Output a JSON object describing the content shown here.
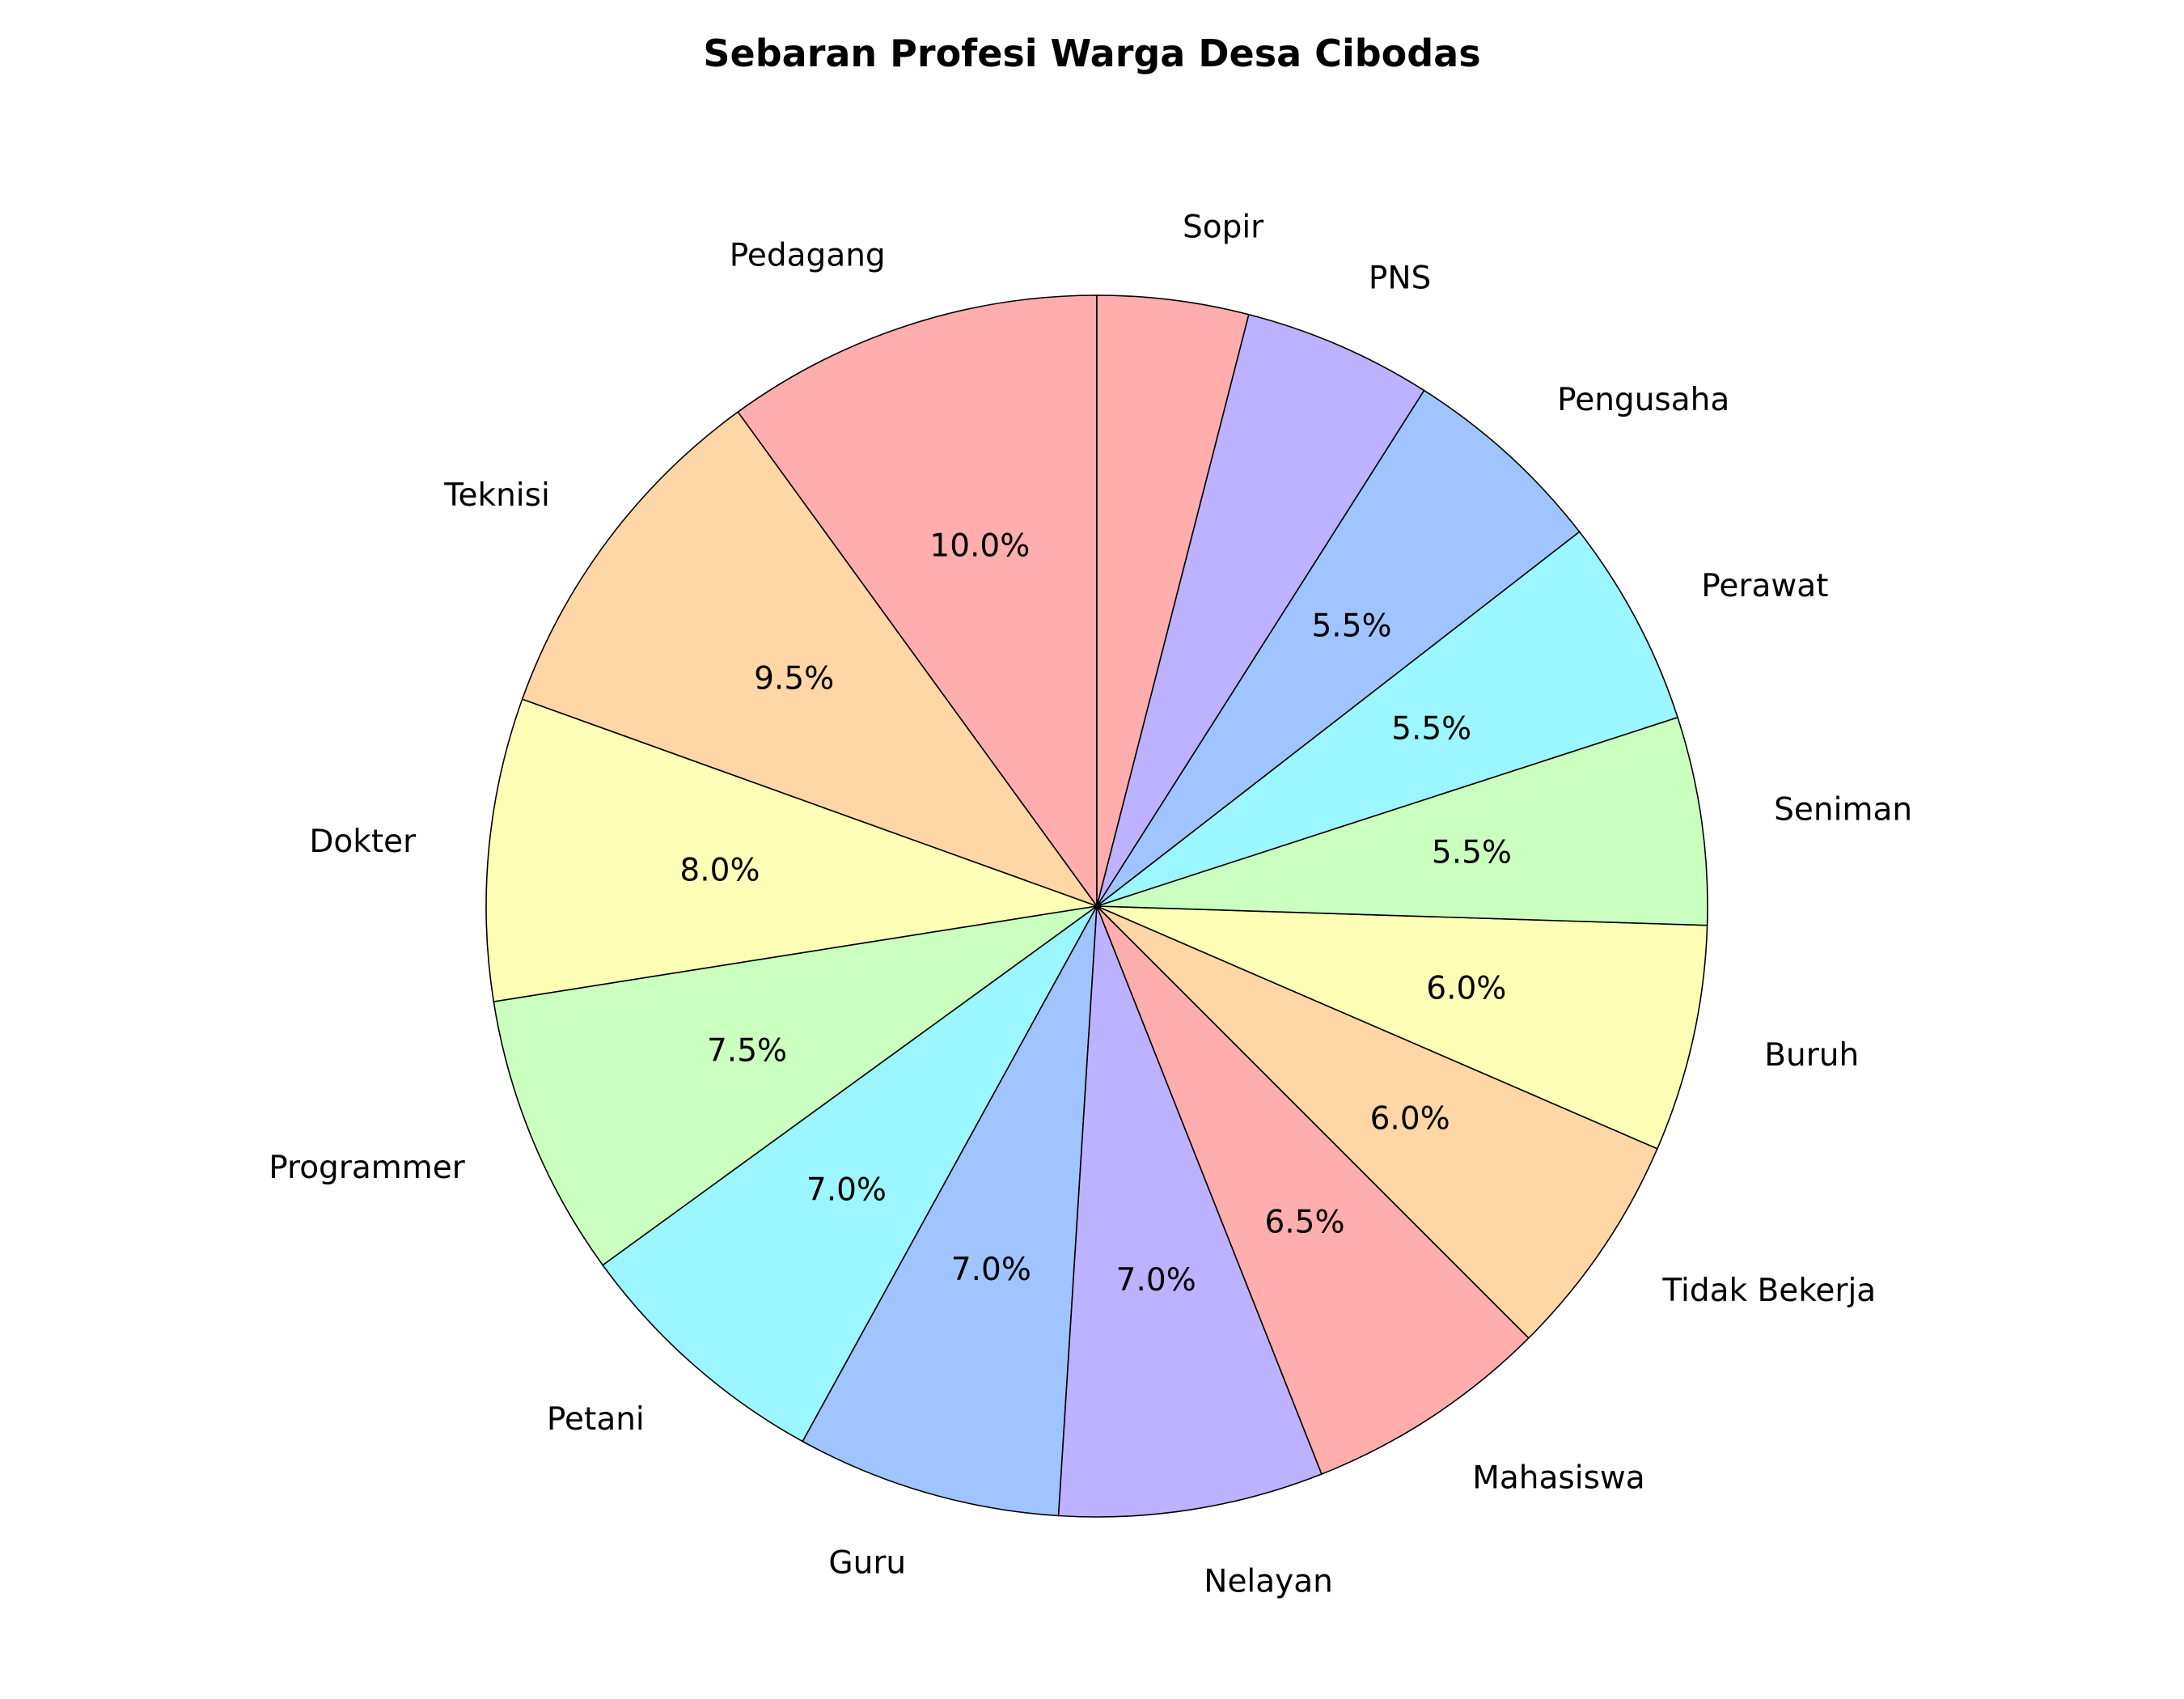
{
  "chart_data": {
    "type": "pie",
    "title": "Sebaran Profesi Warga Desa Cibodas",
    "start_angle_deg": 90,
    "direction": "counterclockwise",
    "legend": "none",
    "slices": [
      {
        "label": "Pedagang",
        "value": 10.0,
        "pct_label": "10.0%",
        "color": "#ffadad"
      },
      {
        "label": "Teknisi",
        "value": 9.5,
        "pct_label": "9.5%",
        "color": "#ffd6a5"
      },
      {
        "label": "Dokter",
        "value": 8.0,
        "pct_label": "8.0%",
        "color": "#fdffb6"
      },
      {
        "label": "Programmer",
        "value": 7.5,
        "pct_label": "7.5%",
        "color": "#caffbf"
      },
      {
        "label": "Petani",
        "value": 7.0,
        "pct_label": "7.0%",
        "color": "#9bf6ff"
      },
      {
        "label": "Guru",
        "value": 7.0,
        "pct_label": "7.0%",
        "color": "#a0c4ff"
      },
      {
        "label": "Nelayan",
        "value": 7.0,
        "pct_label": "7.0%",
        "color": "#bdb2ff"
      },
      {
        "label": "Mahasiswa",
        "value": 6.5,
        "pct_label": "6.5%",
        "color": "#ffadad"
      },
      {
        "label": "Tidak Bekerja",
        "value": 6.0,
        "pct_label": "6.0%",
        "color": "#ffd6a5"
      },
      {
        "label": "Buruh",
        "value": 6.0,
        "pct_label": "6.0%",
        "color": "#fdffb6"
      },
      {
        "label": "Seniman",
        "value": 5.5,
        "pct_label": "5.5%",
        "color": "#caffbf"
      },
      {
        "label": "Perawat",
        "value": 5.5,
        "pct_label": "5.5%",
        "color": "#9bf6ff"
      },
      {
        "label": "Pengusaha",
        "value": 5.5,
        "pct_label": "5.5%",
        "color": "#a0c4ff"
      },
      {
        "label": "PNS",
        "value": 5.0,
        "pct_label": "",
        "color": "#bdb2ff"
      },
      {
        "label": "Sopir",
        "value": 4.0,
        "pct_label": "",
        "color": "#ffadad"
      }
    ]
  }
}
